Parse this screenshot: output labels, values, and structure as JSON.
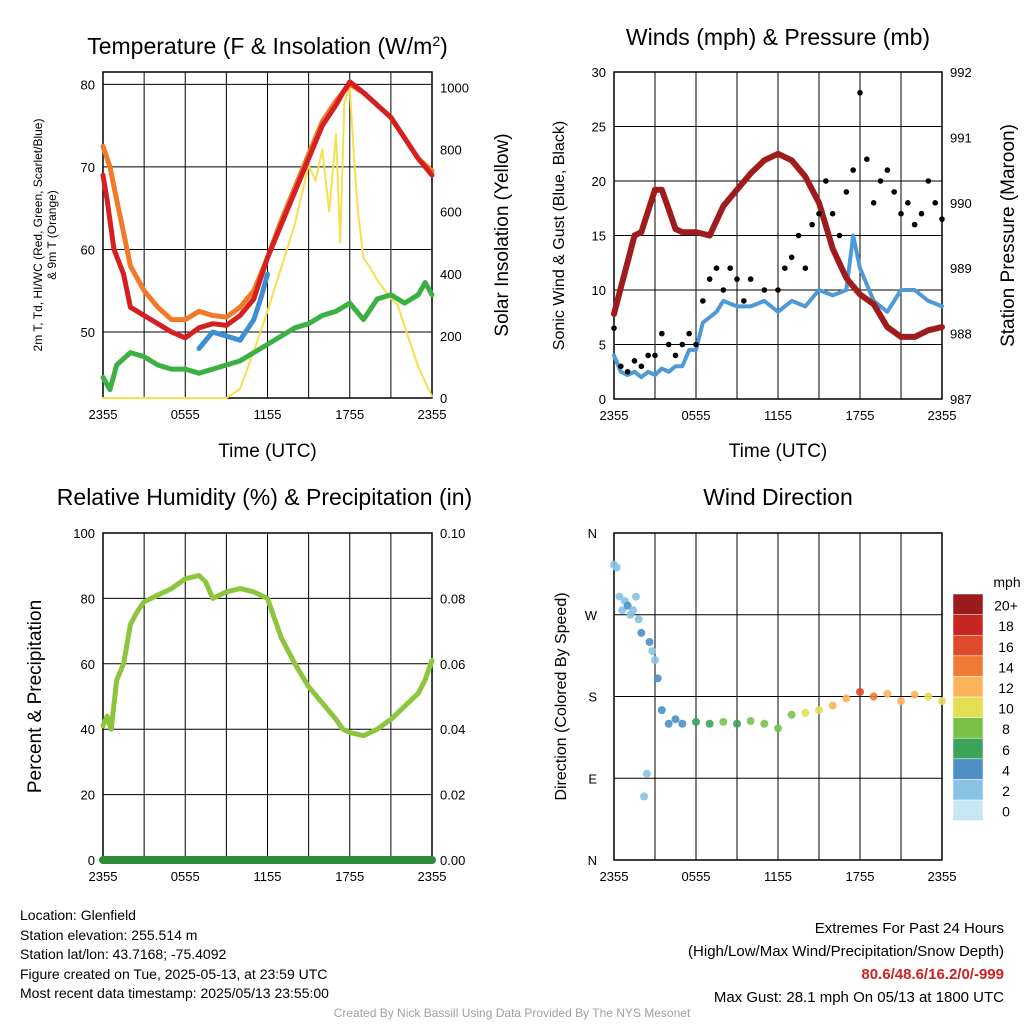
{
  "panels": {
    "temperature": {
      "title": "Temperature (F) & Insolation (W/m²)",
      "xlabel": "Time (UTC)",
      "ylabel_left_lines": [
        "2m T, Td, HI/WC (Red, Green, Scarlet/Blue)",
        "& 9m T (Orange)"
      ],
      "ylabel_right": "Solar Insolation (Yellow)"
    },
    "winds": {
      "title": "Winds (mph) & Pressure (mb)",
      "xlabel": "Time (UTC)",
      "ylabel_left": "Sonic Wind & Gust (Blue, Black)",
      "ylabel_right": "Station Pressure (Maroon)"
    },
    "humidity": {
      "title": "Relative Humidity (%) & Precipitation (in)",
      "ylabel_left": "Percent & Precipitation"
    },
    "direction": {
      "title": "Wind Direction",
      "ylabel_left": "Direction (Colored By Speed)",
      "colorbar_title": "mph"
    }
  },
  "colors": {
    "temp_2m": "#d42020",
    "temp_9m": "#f07a28",
    "dewpoint": "#3cb043",
    "windchill": "#3d8fd1",
    "insolation": "#f5e050",
    "wind": "#4f9ad6",
    "gust": "#000000",
    "pressure": "#a01c1c",
    "rh": "#8cc63f",
    "precip": "#2e8b3a"
  },
  "info_left": {
    "location": "Location: Glenfield",
    "elevation": "Station elevation: 255.514 m",
    "latlon": "Station lat/lon: 43.7168; -75.4092",
    "created": "Figure created on Tue, 2025-05-13, at 23:59 UTC",
    "recent": "Most recent data timestamp: 2025/05/13 23:55:00"
  },
  "info_right": {
    "title": "Extremes For Past 24 Hours",
    "subtitle": "(High/Low/Max Wind/Precipitation/Snow Depth)",
    "values": "80.6/48.6/16.2/0/-999",
    "max_gust": "Max Gust: 28.1 mph On 05/13 at 1800 UTC"
  },
  "credit": "Created By Nick Bassill Using Data Provided By The NYS Mesonet",
  "chart_data": [
    {
      "type": "line",
      "title": "Temperature (F) & Insolation (W/m²)",
      "xlabel": "Time (UTC)",
      "x_ticks": [
        "2355",
        "0555",
        "1155",
        "1755",
        "2355"
      ],
      "x_hours": [
        0,
        3,
        6,
        9,
        12,
        15,
        18,
        21,
        24
      ],
      "ylim_left": [
        42,
        81.5
      ],
      "y_ticks_left": [
        50,
        60,
        70,
        80
      ],
      "ylim_right": [
        0,
        1050
      ],
      "y_ticks_right": [
        0,
        200,
        400,
        600,
        800,
        1000
      ],
      "x_grid": true,
      "series": [
        {
          "name": "2m T (Red)",
          "axis": "left",
          "color": "temp_2m",
          "x": [
            0,
            0.3,
            0.8,
            1.5,
            2,
            3,
            4,
            5,
            6,
            7,
            8,
            9,
            10,
            11,
            12,
            13,
            14,
            15,
            16,
            17,
            17.5,
            18,
            19,
            20,
            21,
            22,
            23,
            24
          ],
          "y": [
            69,
            66,
            60,
            57,
            53,
            52,
            51,
            50,
            49.3,
            50.5,
            51,
            50.8,
            52,
            54,
            59,
            63,
            67,
            71,
            75,
            77.5,
            79,
            80.3,
            79,
            77.5,
            76,
            73.5,
            71,
            69
          ]
        },
        {
          "name": "9m T (Orange)",
          "axis": "left",
          "color": "temp_9m",
          "x": [
            0,
            0.5,
            1,
            1.5,
            2,
            3,
            4,
            5,
            6,
            7,
            8,
            9,
            10,
            11,
            12,
            13,
            14,
            15,
            16,
            17,
            18,
            19,
            20,
            21,
            22,
            23,
            24
          ],
          "y": [
            72.5,
            70,
            66,
            62,
            58,
            55,
            53,
            51.5,
            51.5,
            52.5,
            52,
            51.8,
            53,
            55,
            59,
            63.5,
            67.5,
            71.5,
            75.5,
            78,
            80,
            79,
            77.5,
            76,
            73.5,
            71,
            69.5
          ]
        },
        {
          "name": "Td (Green)",
          "axis": "left",
          "color": "dewpoint",
          "x": [
            0,
            0.5,
            1,
            2,
            3,
            4,
            5,
            6,
            7,
            8,
            9,
            10,
            11,
            12,
            13,
            14,
            15,
            16,
            17,
            18,
            19,
            20,
            21,
            22,
            23,
            23.5,
            24
          ],
          "y": [
            44.5,
            43,
            46,
            47.5,
            47,
            46,
            45.5,
            45.5,
            45,
            45.5,
            46,
            46.5,
            47.5,
            48.5,
            49.5,
            50.5,
            51,
            52,
            52.5,
            53.5,
            51.5,
            54,
            54.5,
            53.5,
            54.5,
            56,
            54.5
          ]
        },
        {
          "name": "WC (Blue)",
          "axis": "left",
          "color": "windchill",
          "x": [
            7,
            8,
            9,
            10,
            11,
            11.5,
            12
          ],
          "y": [
            48,
            50,
            49.5,
            49,
            51.5,
            54,
            57
          ]
        },
        {
          "name": "Solar Insolation (Yellow)",
          "axis": "right",
          "color": "insolation",
          "x": [
            0,
            9,
            10,
            11,
            12,
            13,
            14,
            15,
            15.5,
            16,
            16.5,
            17,
            17.3,
            17.6,
            18,
            18.3,
            18.6,
            19,
            19.5,
            20,
            21,
            21.5,
            22,
            23,
            24
          ],
          "y": [
            0,
            0,
            30,
            150,
            280,
            420,
            560,
            750,
            700,
            800,
            600,
            850,
            500,
            950,
            1000,
            780,
            600,
            450,
            420,
            380,
            320,
            300,
            230,
            100,
            5
          ]
        }
      ]
    },
    {
      "type": "line",
      "title": "Winds (mph) & Pressure (mb)",
      "xlabel": "Time (UTC)",
      "x_ticks": [
        "2355",
        "0555",
        "1155",
        "1755",
        "2355"
      ],
      "ylim_left": [
        0,
        30
      ],
      "y_ticks_left": [
        0,
        5,
        10,
        15,
        20,
        25,
        30
      ],
      "ylim_right": [
        987,
        992
      ],
      "y_ticks_right": [
        987,
        988,
        989,
        990,
        991,
        992
      ],
      "x_grid": true,
      "series": [
        {
          "name": "Sonic Wind (Blue)",
          "axis": "left",
          "color": "wind",
          "x": [
            0,
            0.5,
            1,
            1.5,
            2,
            2.5,
            3,
            3.5,
            4,
            4.5,
            5,
            5.5,
            6,
            6.5,
            7,
            7.5,
            8,
            9,
            10,
            11,
            12,
            13,
            14,
            15,
            16,
            17,
            17.5,
            18,
            19,
            20,
            21,
            22,
            23,
            24
          ],
          "y": [
            4,
            2.5,
            2.2,
            2.5,
            2,
            2.5,
            2.2,
            2.8,
            2.5,
            3,
            3,
            4.5,
            4.5,
            7,
            7.5,
            8,
            9,
            8.5,
            8.5,
            9,
            8,
            9,
            8.5,
            10,
            9.5,
            10,
            15,
            12,
            9,
            8,
            10,
            10,
            9,
            8.5
          ]
        },
        {
          "name": "Gust (Black)",
          "axis": "left",
          "color": "gust",
          "x": [
            0,
            0.5,
            1,
            1.5,
            2,
            2.5,
            3,
            3.5,
            4,
            4.5,
            5,
            5.5,
            6,
            6.5,
            7,
            7.5,
            8,
            8.5,
            9,
            9.5,
            10,
            11,
            12,
            12.5,
            13,
            13.5,
            14,
            14.5,
            15,
            15.5,
            16,
            16.5,
            17,
            17.5,
            18,
            18.5,
            19,
            19.5,
            20,
            20.5,
            21,
            21.5,
            22,
            22.5,
            23,
            23.5,
            24
          ],
          "y": [
            6.5,
            3,
            2.5,
            3.5,
            3,
            4,
            4,
            6,
            5,
            4,
            5,
            6,
            5,
            9,
            11,
            12,
            10,
            12,
            11,
            9,
            11,
            10,
            10,
            12,
            13,
            15,
            12,
            16,
            17,
            20,
            17,
            15,
            19,
            21,
            28.1,
            22,
            18,
            20,
            21,
            19,
            17,
            18,
            16,
            17,
            20,
            18,
            16.5
          ]
        },
        {
          "name": "Station Pressure (Maroon)",
          "axis": "right",
          "color": "pressure",
          "x": [
            0,
            0.5,
            1,
            1.5,
            2,
            3,
            3.5,
            4,
            4.5,
            5,
            6,
            7,
            8,
            9,
            10,
            11,
            12,
            13,
            14,
            15,
            16,
            17,
            18,
            19,
            20,
            21,
            22,
            23,
            24
          ],
          "y": [
            988.3,
            988.7,
            989.1,
            989.5,
            989.55,
            990.2,
            990.2,
            989.9,
            989.6,
            989.55,
            989.55,
            989.5,
            989.95,
            990.2,
            990.45,
            990.65,
            990.75,
            990.65,
            990.4,
            990.0,
            989.3,
            988.85,
            988.6,
            988.45,
            988.1,
            987.95,
            987.95,
            988.05,
            988.1
          ]
        }
      ]
    },
    {
      "type": "line",
      "title": "Relative Humidity (%) & Precipitation (in)",
      "x_ticks": [
        "2355",
        "0555",
        "1155",
        "1755",
        "2355"
      ],
      "ylim_left": [
        0,
        100
      ],
      "y_ticks_left": [
        0,
        20,
        40,
        60,
        80,
        100
      ],
      "ylim_right": [
        0,
        0.1
      ],
      "y_ticks_right": [
        "0.00",
        "0.02",
        "0.04",
        "0.06",
        "0.08",
        "0.10"
      ],
      "x_grid": true,
      "series": [
        {
          "name": "Relative Humidity",
          "axis": "left",
          "color": "rh",
          "x": [
            0,
            0.3,
            0.6,
            1,
            1.5,
            2,
            2.5,
            3,
            4,
            4.5,
            5,
            6,
            7,
            7.5,
            8,
            8.5,
            9,
            10,
            11,
            12,
            13,
            14,
            15,
            16,
            17,
            17.5,
            18,
            19,
            20,
            21,
            22,
            23,
            23.5,
            24
          ],
          "y": [
            41,
            44,
            40,
            55,
            60,
            72,
            76,
            79,
            81,
            82,
            83,
            86,
            87,
            85,
            80,
            81,
            82,
            83,
            82,
            80,
            68,
            60,
            53,
            48,
            43,
            40,
            39,
            38,
            40,
            43,
            47,
            51,
            55,
            61
          ]
        },
        {
          "name": "Precipitation",
          "axis": "right",
          "color": "precip",
          "x": [
            0,
            24
          ],
          "y": [
            0,
            0
          ]
        }
      ]
    },
    {
      "type": "scatter",
      "title": "Wind Direction",
      "x_ticks": [
        "2355",
        "0555",
        "1155",
        "1755",
        "2355"
      ],
      "y_ticks": [
        "N",
        "E",
        "S",
        "W",
        "N"
      ],
      "ylim": [
        0,
        360
      ],
      "x_grid": true,
      "colorbar": {
        "title": "mph",
        "labels": [
          "0",
          "2",
          "4",
          "6",
          "8",
          "10",
          "12",
          "14",
          "16",
          "18",
          "20+"
        ],
        "colors": [
          "#c6e6f5",
          "#88c2e4",
          "#4d8fc6",
          "#3da25a",
          "#79c24a",
          "#e3de53",
          "#fbb45a",
          "#f07a33",
          "#e04a2a",
          "#c72424",
          "#9b1a1a"
        ]
      },
      "series": [
        {
          "name": "Direction",
          "x": [
            0,
            0.2,
            0.4,
            0.6,
            0.8,
            1,
            1.2,
            1.4,
            1.6,
            1.8,
            2,
            2.2,
            2.4,
            2.6,
            2.8,
            3,
            3.2,
            3.5,
            4,
            4.5,
            5,
            6,
            7,
            8,
            9,
            10,
            11,
            12,
            13,
            14,
            15,
            16,
            17,
            18,
            19,
            20,
            21,
            22,
            23,
            24
          ],
          "y": [
            325,
            322,
            290,
            275,
            285,
            280,
            270,
            275,
            290,
            265,
            250,
            70,
            95,
            240,
            230,
            220,
            200,
            165,
            150,
            155,
            150,
            152,
            150,
            152,
            150,
            153,
            150,
            145,
            160,
            162,
            165,
            170,
            178,
            185,
            180,
            183,
            175,
            182,
            180,
            175
          ],
          "speed": [
            2,
            2,
            1,
            2,
            2,
            3,
            2,
            1,
            2,
            2,
            3,
            2,
            2,
            3,
            2,
            2,
            3,
            3,
            4,
            3,
            4,
            5,
            6,
            7,
            6,
            7,
            7,
            8,
            8,
            9,
            10,
            12,
            12,
            15,
            13,
            11,
            12,
            11,
            10,
            9
          ]
        }
      ]
    }
  ]
}
